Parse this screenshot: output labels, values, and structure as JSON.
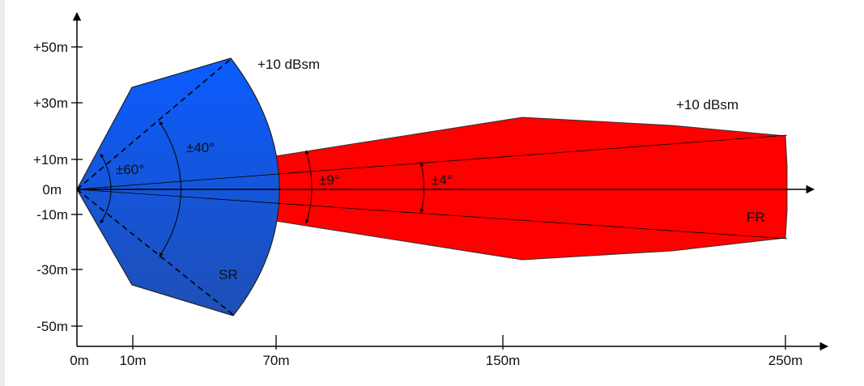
{
  "colors": {
    "short_range_fill_top": "#0a5cff",
    "short_range_fill_bottom": "#1f4fb5",
    "long_range_fill": "#ff0000",
    "axis": "#000000",
    "page_edge_shadow": "#e6e6e6"
  },
  "y_axis": {
    "ticks": [
      "+50m",
      "+30m",
      "+10m",
      "0m",
      "-10m",
      "-30m",
      "-50m"
    ]
  },
  "x_axis": {
    "ticks": [
      "0m",
      "10m",
      "70m",
      "150m",
      "250m"
    ]
  },
  "short_range": {
    "label": "SR",
    "rcs": "+10 dBsm",
    "outer_angle": "±60°",
    "inner_angle": "±40°"
  },
  "long_range": {
    "label": "FR",
    "rcs": "+10 dBsm",
    "outer_angle": "±9°",
    "inner_angle": "±4°"
  }
}
